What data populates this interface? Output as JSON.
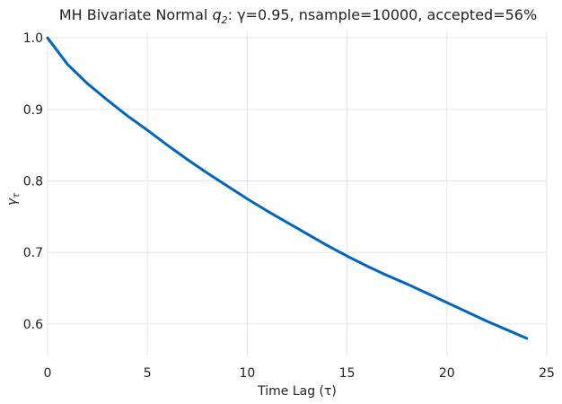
{
  "chart_data": {
    "type": "line",
    "title": "MH Bivariate Normal q₂: γ=0.95, nsample=10000, accepted=56%",
    "title_parts": {
      "prefix": "MH Bivariate Normal ",
      "q": "q",
      "sub": "2",
      "suffix": ": γ=0.95, nsample=10000, accepted=56%"
    },
    "xlabel": "Time Lag (τ)",
    "ylabel": "γτ",
    "ylabel_parts": {
      "main": "γ",
      "sub": "τ"
    },
    "xlim": [
      0,
      25
    ],
    "ylim": [
      0.556,
      1.009
    ],
    "xticks": [
      0,
      5,
      10,
      15,
      20,
      25
    ],
    "xtick_labels": [
      "0",
      "5",
      "10",
      "15",
      "20",
      "25"
    ],
    "yticks": [
      0.6,
      0.7,
      0.8,
      0.9,
      1.0
    ],
    "ytick_labels": [
      "0.6",
      "0.7",
      "0.8",
      "0.9",
      "1.0"
    ],
    "grid": true,
    "line_color": "#0067c0",
    "series": [
      {
        "x": [
          0,
          1,
          2,
          3,
          4,
          5,
          6,
          7,
          8,
          9,
          10,
          11,
          12,
          13,
          14,
          15,
          16,
          17,
          18,
          19,
          20,
          21,
          22,
          23,
          24
        ],
        "y": [
          1.0,
          0.963,
          0.936,
          0.913,
          0.891,
          0.871,
          0.85,
          0.83,
          0.811,
          0.793,
          0.775,
          0.758,
          0.742,
          0.726,
          0.71,
          0.695,
          0.681,
          0.668,
          0.656,
          0.643,
          0.63,
          0.617,
          0.604,
          0.592,
          0.58
        ]
      }
    ]
  }
}
